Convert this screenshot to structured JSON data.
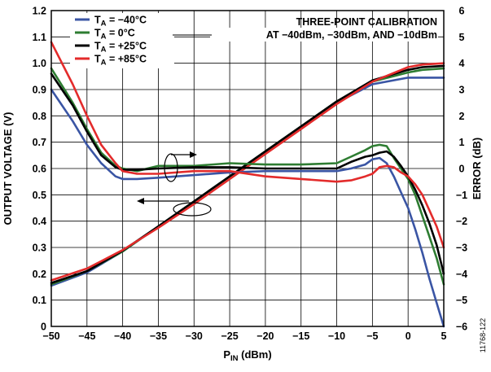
{
  "chart_data": {
    "type": "line",
    "xlabel": "P",
    "xlabel_sub": "IN",
    "xlabel_unit": " (dBm)",
    "ylabel_left": "OUTPUT VOLTAGE (V)",
    "ylabel_right": "ERROR (dB)",
    "xlim": [
      -50,
      5
    ],
    "ylim_left": [
      0,
      1.2
    ],
    "ylim_right": [
      -6,
      6
    ],
    "grid": true,
    "x_ticks": [
      "−50",
      "−45",
      "−40",
      "−35",
      "−30",
      "−25",
      "−20",
      "−15",
      "−10",
      "−5",
      "0",
      "5"
    ],
    "y_left_ticks": [
      "0",
      "0.1",
      "0.2",
      "0.3",
      "0.4",
      "0.5",
      "0.6",
      "0.7",
      "0.8",
      "0.9",
      "1.0",
      "1.1",
      "1.2"
    ],
    "y_right_ticks": [
      "−6",
      "−5",
      "−4",
      "−3",
      "−2",
      "−1",
      "0",
      "1",
      "2",
      "3",
      "4",
      "5",
      "6"
    ],
    "legend": [
      {
        "name_main": "T",
        "name_sub": "A",
        "name_rest": " = −40°C",
        "color": "#3a55a4"
      },
      {
        "name_main": "T",
        "name_sub": "A",
        "name_rest": " = 0°C",
        "color": "#2e7d32"
      },
      {
        "name_main": "T",
        "name_sub": "A",
        "name_rest": " = +25°C",
        "color": "#000000"
      },
      {
        "name_main": "T",
        "name_sub": "A",
        "name_rest": " = +85°C",
        "color": "#e32b2b"
      }
    ],
    "legend_placement": "top-left",
    "annotation_title": "THREE-POINT CALIBRATION",
    "annotation_detail": "AT −40dBm, −30dBm, AND −10dBm",
    "series": [
      {
        "color": "#3a55a4",
        "axis": "left",
        "x": [
          -50,
          -45,
          -40,
          -35,
          -30,
          -25,
          -20,
          -15,
          -10,
          -5,
          0,
          2,
          5
        ],
        "y": [
          0.155,
          0.205,
          0.285,
          0.38,
          0.475,
          0.57,
          0.665,
          0.755,
          0.85,
          0.92,
          0.945,
          0.945,
          0.945
        ]
      },
      {
        "color": "#2e7d32",
        "axis": "left",
        "x": [
          -50,
          -45,
          -40,
          -35,
          -30,
          -25,
          -20,
          -15,
          -10,
          -5,
          0,
          2,
          5
        ],
        "y": [
          0.16,
          0.21,
          0.285,
          0.38,
          0.475,
          0.57,
          0.665,
          0.76,
          0.855,
          0.93,
          0.965,
          0.975,
          0.98
        ]
      },
      {
        "color": "#000000",
        "axis": "left",
        "x": [
          -50,
          -45,
          -40,
          -35,
          -30,
          -25,
          -20,
          -15,
          -10,
          -5,
          0,
          2,
          5
        ],
        "y": [
          0.165,
          0.21,
          0.288,
          0.38,
          0.475,
          0.57,
          0.665,
          0.76,
          0.855,
          0.935,
          0.975,
          0.985,
          0.99
        ]
      },
      {
        "color": "#e32b2b",
        "axis": "left",
        "x": [
          -50,
          -45,
          -40,
          -35,
          -30,
          -25,
          -20,
          -15,
          -10,
          -5,
          0,
          2,
          5
        ],
        "y": [
          0.175,
          0.22,
          0.29,
          0.375,
          0.465,
          0.56,
          0.655,
          0.75,
          0.845,
          0.93,
          0.985,
          0.995,
          1.0
        ]
      },
      {
        "color": "#3a55a4",
        "axis": "right",
        "x": [
          -50,
          -47,
          -45,
          -43,
          -41,
          -40,
          -38,
          -35,
          -30,
          -25,
          -20,
          -15,
          -10,
          -8,
          -6,
          -5,
          -4,
          -3,
          -2,
          -1,
          0,
          1,
          2,
          3,
          4,
          5
        ],
        "y": [
          3.0,
          1.8,
          0.9,
          0.2,
          -0.3,
          -0.4,
          -0.4,
          -0.35,
          -0.25,
          -0.15,
          -0.1,
          -0.1,
          -0.1,
          0.0,
          0.15,
          0.35,
          0.4,
          0.2,
          -0.3,
          -0.9,
          -1.5,
          -2.3,
          -3.2,
          -4.2,
          -5.1,
          -6.0
        ]
      },
      {
        "color": "#2e7d32",
        "axis": "right",
        "x": [
          -50,
          -47,
          -45,
          -43,
          -41,
          -40,
          -38,
          -35,
          -30,
          -25,
          -20,
          -15,
          -10,
          -8,
          -6,
          -5,
          -4,
          -3,
          -2,
          -1,
          0,
          1,
          2,
          3,
          4,
          5
        ],
        "y": [
          3.8,
          2.5,
          1.5,
          0.6,
          0.1,
          0.0,
          -0.1,
          0.1,
          0.1,
          0.2,
          0.15,
          0.15,
          0.2,
          0.45,
          0.7,
          0.85,
          0.9,
          0.85,
          0.4,
          0.0,
          -0.4,
          -1.0,
          -1.8,
          -2.6,
          -3.4,
          -4.4
        ]
      },
      {
        "color": "#000000",
        "axis": "right",
        "x": [
          -50,
          -47,
          -45,
          -43,
          -41,
          -40,
          -38,
          -35,
          -30,
          -25,
          -20,
          -15,
          -10,
          -8,
          -6,
          -5,
          -4,
          -3,
          -2,
          -1,
          0,
          1,
          2,
          3,
          4,
          5
        ],
        "y": [
          3.6,
          2.4,
          1.4,
          0.5,
          0.05,
          -0.05,
          -0.05,
          0.0,
          0.05,
          0.05,
          0.0,
          0.0,
          0.0,
          0.25,
          0.45,
          0.5,
          0.6,
          0.65,
          0.45,
          0.1,
          -0.3,
          -0.8,
          -1.4,
          -2.1,
          -2.9,
          -4.0
        ]
      },
      {
        "color": "#e32b2b",
        "axis": "right",
        "x": [
          -50,
          -47,
          -45,
          -43,
          -41,
          -40,
          -38,
          -35,
          -30,
          -25,
          -20,
          -15,
          -10,
          -8,
          -6,
          -5,
          -4,
          -3,
          -2,
          -1,
          0,
          1,
          2,
          3,
          4,
          5
        ],
        "y": [
          4.8,
          3.2,
          2.0,
          0.9,
          0.2,
          -0.1,
          -0.2,
          -0.2,
          -0.1,
          -0.1,
          -0.3,
          -0.4,
          -0.5,
          -0.45,
          -0.3,
          -0.2,
          0.05,
          0.1,
          0.05,
          -0.15,
          -0.3,
          -0.6,
          -1.0,
          -1.6,
          -2.2,
          -3.0
        ]
      }
    ]
  },
  "figure_id": "11768-122"
}
